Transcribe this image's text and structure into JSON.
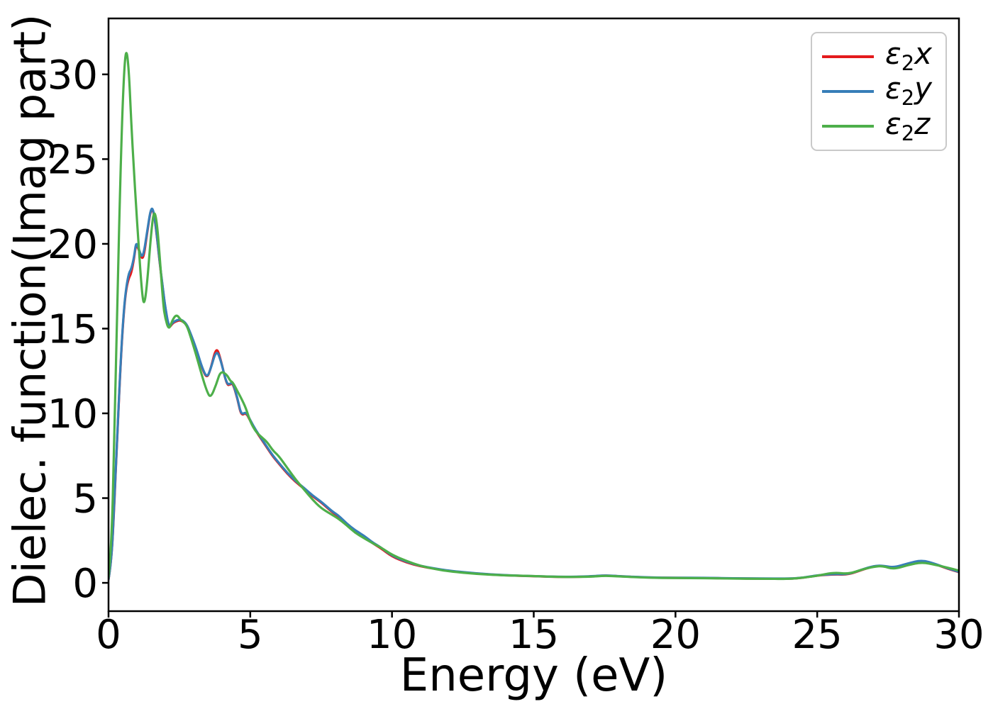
{
  "figure": {
    "background": "#ffffff"
  },
  "chart_data": {
    "type": "line",
    "title": "",
    "xlabel": "Energy (eV)",
    "ylabel": "Dielec. function(Imag part)",
    "xlim": [
      0,
      30
    ],
    "ylim": [
      -1.67,
      33.3
    ],
    "xticks": [
      0,
      5,
      10,
      15,
      20,
      25,
      30
    ],
    "yticks": [
      0,
      5,
      10,
      15,
      20,
      25,
      30
    ],
    "grid": false,
    "legend_position": "upper right",
    "spine_color": "#000000",
    "x": [
      0,
      0.1,
      0.2,
      0.3,
      0.45,
      0.55,
      0.63,
      0.72,
      0.8,
      0.9,
      0.97,
      1.05,
      1.17,
      1.25,
      1.35,
      1.5,
      1.6,
      1.7,
      1.8,
      1.93,
      2.0,
      2.13,
      2.25,
      2.4,
      2.55,
      2.75,
      2.9,
      3.1,
      3.3,
      3.47,
      3.6,
      3.8,
      3.95,
      4.17,
      4.3,
      4.38,
      4.55,
      4.68,
      4.85,
      5.0,
      5.2,
      5.4,
      5.6,
      5.8,
      6.0,
      6.3,
      6.6,
      6.9,
      7.2,
      7.5,
      7.9,
      8.1,
      8.4,
      8.7,
      9.0,
      9.3,
      9.6,
      10.0,
      10.5,
      11.0,
      11.5,
      12.0,
      13.0,
      14.0,
      15.0,
      16.0,
      17.0,
      17.5,
      18.0,
      19.0,
      20.0,
      21.0,
      22.0,
      23.0,
      24.0,
      24.5,
      25.0,
      25.6,
      26.1,
      26.6,
      27.0,
      27.3,
      27.7,
      28.2,
      28.7,
      29.2,
      29.6,
      30.0
    ],
    "series": [
      {
        "name": "ε2x",
        "legend": {
          "sym": "ε",
          "sub": "2",
          "var": "x"
        },
        "color": "#e41a1c",
        "values": [
          0.2,
          1.2,
          4.4,
          8.4,
          13.7,
          16.2,
          17.4,
          18.0,
          18.25,
          19.1,
          20.0,
          19.75,
          19.1,
          19.3,
          20.5,
          22.15,
          21.85,
          20.55,
          18.95,
          17.15,
          16.25,
          15.0,
          15.3,
          15.45,
          15.5,
          15.25,
          14.65,
          13.75,
          12.65,
          12.05,
          12.6,
          13.95,
          13.25,
          11.65,
          11.7,
          11.8,
          10.85,
          9.85,
          10.05,
          9.55,
          8.95,
          8.45,
          7.95,
          7.45,
          7.05,
          6.45,
          5.95,
          5.55,
          5.1,
          4.75,
          4.15,
          3.95,
          3.45,
          3.05,
          2.75,
          2.35,
          2.05,
          1.55,
          1.2,
          0.97,
          0.83,
          0.7,
          0.54,
          0.44,
          0.39,
          0.34,
          0.37,
          0.44,
          0.39,
          0.31,
          0.29,
          0.29,
          0.26,
          0.25,
          0.24,
          0.29,
          0.44,
          0.5,
          0.48,
          0.78,
          0.98,
          1.0,
          0.88,
          1.13,
          1.3,
          1.08,
          0.83,
          0.63
        ]
      },
      {
        "name": "ε2y",
        "legend": {
          "sym": "ε",
          "sub": "2",
          "var": "y"
        },
        "color": "#377eb8",
        "values": [
          0.2,
          1.2,
          4.5,
          8.5,
          13.8,
          16.3,
          17.5,
          18.3,
          18.5,
          19.2,
          20.1,
          19.8,
          19.2,
          19.5,
          20.6,
          22.2,
          21.9,
          20.6,
          19.0,
          17.2,
          16.3,
          15.05,
          15.35,
          15.5,
          15.55,
          15.3,
          14.7,
          13.8,
          12.7,
          12.1,
          12.6,
          13.75,
          13.2,
          11.7,
          11.75,
          11.85,
          10.9,
          9.9,
          10.1,
          9.6,
          9.0,
          8.5,
          8.0,
          7.5,
          7.1,
          6.5,
          6.0,
          5.6,
          5.15,
          4.8,
          4.2,
          4.0,
          3.5,
          3.1,
          2.8,
          2.4,
          2.1,
          1.6,
          1.25,
          1.0,
          0.85,
          0.72,
          0.55,
          0.45,
          0.4,
          0.35,
          0.38,
          0.45,
          0.4,
          0.32,
          0.3,
          0.3,
          0.27,
          0.26,
          0.25,
          0.3,
          0.45,
          0.52,
          0.5,
          0.8,
          1.0,
          1.02,
          0.9,
          1.15,
          1.35,
          1.1,
          0.85,
          0.65
        ]
      },
      {
        "name": "ε2z",
        "legend": {
          "sym": "ε",
          "sub": "2",
          "var": "z"
        },
        "color": "#4daf4a",
        "values": [
          0.3,
          2.0,
          8.0,
          16.0,
          26.0,
          30.3,
          31.6,
          30.2,
          27.2,
          24.2,
          22.3,
          20.2,
          17.3,
          16.3,
          17.4,
          20.6,
          22.0,
          21.4,
          19.4,
          16.4,
          15.6,
          14.9,
          15.5,
          15.85,
          15.5,
          15.25,
          14.5,
          13.4,
          12.2,
          11.3,
          10.9,
          11.7,
          12.5,
          12.3,
          11.9,
          11.85,
          11.3,
          10.9,
          10.3,
          9.5,
          8.9,
          8.6,
          8.3,
          7.8,
          7.5,
          6.8,
          6.1,
          5.5,
          4.9,
          4.4,
          4.0,
          3.8,
          3.4,
          2.95,
          2.65,
          2.35,
          2.1,
          1.65,
          1.3,
          1.0,
          0.82,
          0.68,
          0.52,
          0.44,
          0.4,
          0.34,
          0.36,
          0.42,
          0.38,
          0.3,
          0.28,
          0.28,
          0.25,
          0.24,
          0.23,
          0.3,
          0.42,
          0.62,
          0.52,
          0.8,
          0.95,
          1.0,
          0.8,
          1.05,
          1.22,
          1.05,
          0.9,
          0.72
        ]
      }
    ]
  }
}
